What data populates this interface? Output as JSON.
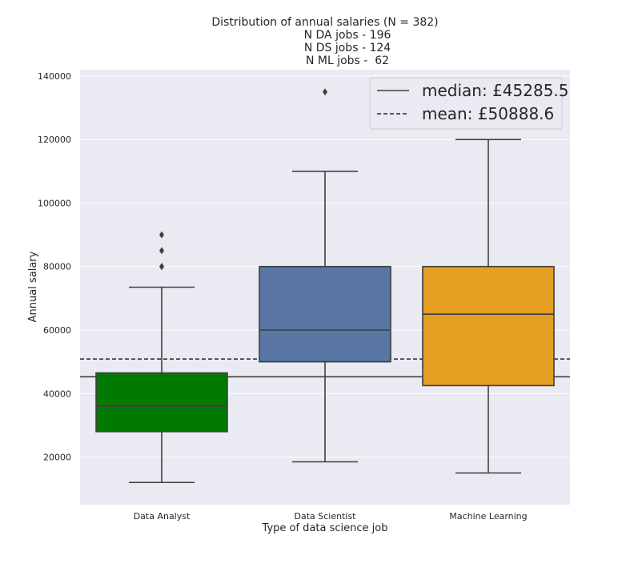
{
  "chart_data": {
    "type": "box",
    "title_lines": [
      "Distribution of annual salaries (N = 382)",
      "N DA jobs - 196",
      "N DS jobs - 124",
      "N ML jobs -  62"
    ],
    "xlabel": "Type of data science job",
    "ylabel": "Annual salary",
    "ylim": [
      5000,
      142000
    ],
    "yticks": [
      20000,
      40000,
      60000,
      80000,
      100000,
      120000,
      140000
    ],
    "grid": true,
    "legend_position": "top-right",
    "categories": [
      "Data Analyst",
      "Data Scientist",
      "Machine Learning"
    ],
    "boxes": [
      {
        "category": "Data Analyst",
        "color": "#007a00",
        "whisker_low": 12000,
        "q1": 28000,
        "median": 36000,
        "q3": 46500,
        "whisker_high": 73500,
        "outliers": [
          80000,
          80000,
          85000,
          90000
        ]
      },
      {
        "category": "Data Scientist",
        "color": "#5875a4",
        "whisker_low": 18500,
        "q1": 50000,
        "median": 60000,
        "q3": 80000,
        "whisker_high": 110000,
        "outliers": [
          135000
        ]
      },
      {
        "category": "Machine Learning",
        "color": "#e59e21",
        "whisker_low": 15000,
        "q1": 42500,
        "median": 65000,
        "q3": 80000,
        "whisker_high": 120000,
        "outliers": []
      }
    ],
    "reference_lines": [
      {
        "label": "median: £45285.5",
        "value": 45285.5,
        "style": "solid"
      },
      {
        "label": "mean: £50888.6",
        "value": 50888.6,
        "style": "dashed"
      }
    ]
  }
}
